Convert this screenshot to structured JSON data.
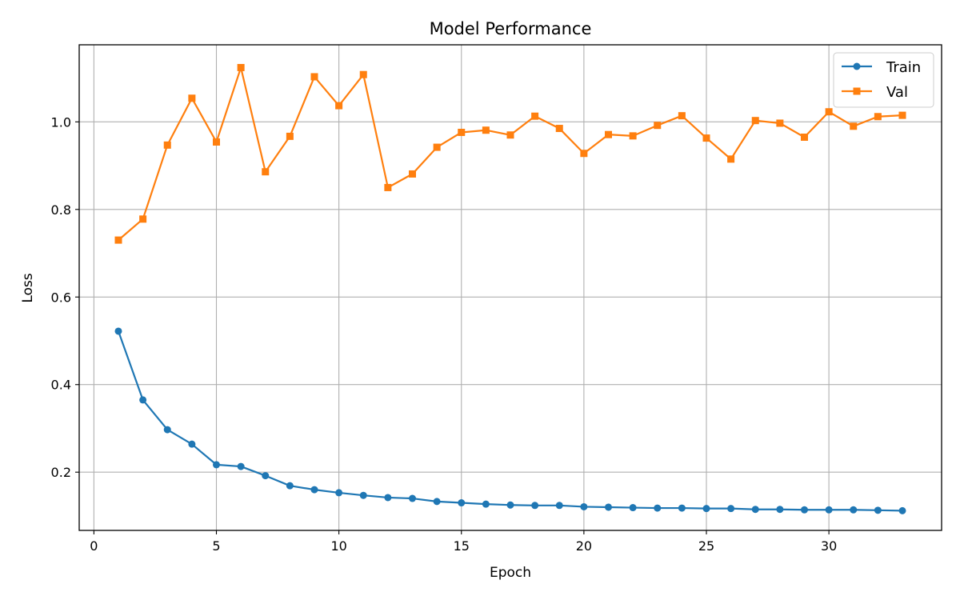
{
  "chart_data": {
    "type": "line",
    "title": "Model Performance",
    "xlabel": "Epoch",
    "ylabel": "Loss",
    "xlim": [
      -0.6,
      34.6
    ],
    "ylim": [
      0.067,
      1.176
    ],
    "x_ticks": [
      0,
      5,
      10,
      15,
      20,
      25,
      30
    ],
    "y_ticks": [
      0.2,
      0.4,
      0.6,
      0.8,
      1.0
    ],
    "y_tick_labels": [
      "0.2",
      "0.4",
      "0.6",
      "0.8",
      "1.0"
    ],
    "grid": true,
    "legend_position": "top-right",
    "x": [
      1,
      2,
      3,
      4,
      5,
      6,
      7,
      8,
      9,
      10,
      11,
      12,
      13,
      14,
      15,
      16,
      17,
      18,
      19,
      20,
      21,
      22,
      23,
      24,
      25,
      26,
      27,
      28,
      29,
      30,
      31,
      32,
      33
    ],
    "series": [
      {
        "name": "Train",
        "color": "#1f77b4",
        "marker": "circle",
        "values": [
          0.522,
          0.365,
          0.297,
          0.264,
          0.217,
          0.213,
          0.192,
          0.169,
          0.16,
          0.153,
          0.147,
          0.142,
          0.14,
          0.133,
          0.13,
          0.127,
          0.125,
          0.124,
          0.124,
          0.121,
          0.12,
          0.119,
          0.118,
          0.118,
          0.117,
          0.117,
          0.115,
          0.115,
          0.114,
          0.114,
          0.114,
          0.113,
          0.112
        ]
      },
      {
        "name": "Val",
        "color": "#ff7f0e",
        "marker": "square",
        "values": [
          0.73,
          0.778,
          0.947,
          1.054,
          0.954,
          1.124,
          0.886,
          0.967,
          1.103,
          1.037,
          1.108,
          0.85,
          0.881,
          0.942,
          0.976,
          0.981,
          0.97,
          1.013,
          0.985,
          0.928,
          0.971,
          0.968,
          0.992,
          1.014,
          0.963,
          0.915,
          1.003,
          0.997,
          0.965,
          1.023,
          0.99,
          1.012,
          1.015
        ]
      }
    ]
  }
}
